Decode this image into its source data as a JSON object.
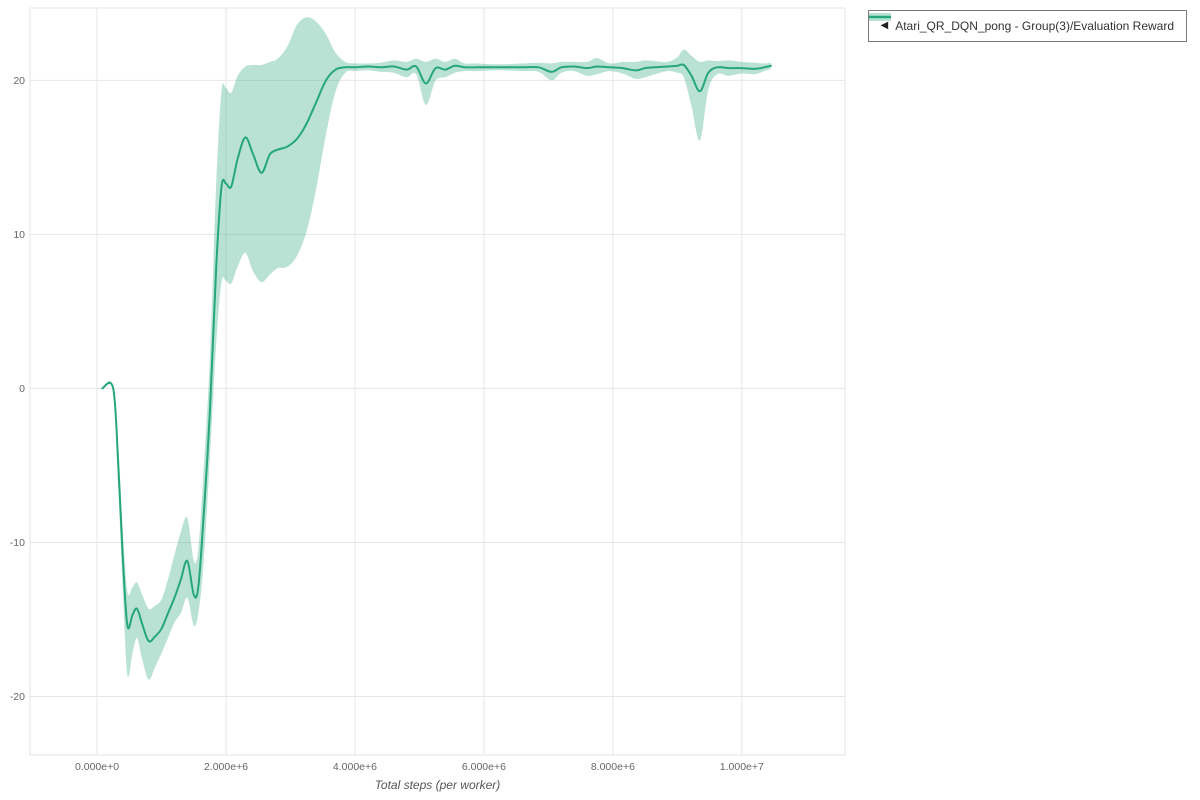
{
  "legend": {
    "toggle_icon": "◀",
    "label": "Atari_QR_DQN_pong - Group(3)/Evaluation Reward"
  },
  "chart_data": {
    "type": "line",
    "title": "",
    "xlabel": "Total steps (per worker)",
    "ylabel": "",
    "grid": true,
    "legend_position": "top-right-outside",
    "xlim": [
      -1040000,
      11600000
    ],
    "ylim": [
      -23.8,
      24.7
    ],
    "xticks": [
      {
        "value": 0,
        "label": "0.000e+0"
      },
      {
        "value": 2000000,
        "label": "2.000e+6"
      },
      {
        "value": 4000000,
        "label": "4.000e+6"
      },
      {
        "value": 6000000,
        "label": "6.000e+6"
      },
      {
        "value": 8000000,
        "label": "8.000e+6"
      },
      {
        "value": 10000000,
        "label": "1.000e+7"
      }
    ],
    "yticks": [
      {
        "value": -20,
        "label": "-20"
      },
      {
        "value": -10,
        "label": "-10"
      },
      {
        "value": 0,
        "label": "0"
      },
      {
        "value": 10,
        "label": "10"
      },
      {
        "value": 20,
        "label": "20"
      }
    ],
    "colors": {
      "line": "#26a67d",
      "band": "#26a67d",
      "band_opacity": 0.32,
      "grid": "#e6e6e6",
      "tick_text": "#666666",
      "axis_title_text": "#555555"
    },
    "series": [
      {
        "name": "Atari_QR_DQN_pong - Group(3)/Evaluation Reward",
        "points_format": [
          "x_steps",
          "mean",
          "lower",
          "upper"
        ],
        "points": [
          [
            80000,
            0,
            0,
            0
          ],
          [
            250000,
            0,
            0,
            0
          ],
          [
            330000,
            -5,
            -6.5,
            -3.8
          ],
          [
            400000,
            -11,
            -13.2,
            -9.2
          ],
          [
            470000,
            -15.4,
            -18.6,
            -13.2
          ],
          [
            550000,
            -14.7,
            -17.2,
            -12.9
          ],
          [
            620000,
            -14.3,
            -16.2,
            -12.6
          ],
          [
            700000,
            -15.3,
            -17.6,
            -13.4
          ],
          [
            800000,
            -16.4,
            -18.9,
            -14.3
          ],
          [
            900000,
            -16.1,
            -18.1,
            -14.1
          ],
          [
            1000000,
            -15.6,
            -17.2,
            -13.7
          ],
          [
            1100000,
            -14.6,
            -16.2,
            -12.4
          ],
          [
            1200000,
            -13.6,
            -15.2,
            -10.8
          ],
          [
            1300000,
            -12.4,
            -14.6,
            -9.3
          ],
          [
            1400000,
            -11.2,
            -13.6,
            -8.4
          ],
          [
            1500000,
            -13.4,
            -15.4,
            -11.2
          ],
          [
            1570000,
            -12.9,
            -14.6,
            -10.4
          ],
          [
            1650000,
            -8.5,
            -11.5,
            -5.5
          ],
          [
            1750000,
            -1.5,
            -4.5,
            2.0
          ],
          [
            1850000,
            8.0,
            3.0,
            13.5
          ],
          [
            1930000,
            13.1,
            6.9,
            19.3
          ],
          [
            2000000,
            13.3,
            7.0,
            19.5
          ],
          [
            2080000,
            13.1,
            6.8,
            19.2
          ],
          [
            2180000,
            14.9,
            7.9,
            20.3
          ],
          [
            2300000,
            16.3,
            8.8,
            20.9
          ],
          [
            2420000,
            15.2,
            7.6,
            21.0
          ],
          [
            2550000,
            14.0,
            6.9,
            21.0
          ],
          [
            2680000,
            15.2,
            7.4,
            21.2
          ],
          [
            2800000,
            15.5,
            7.8,
            21.4
          ],
          [
            2950000,
            15.7,
            7.9,
            22.2
          ],
          [
            3100000,
            16.2,
            8.6,
            23.6
          ],
          [
            3250000,
            17.2,
            10.2,
            24.1
          ],
          [
            3400000,
            18.6,
            13.0,
            23.8
          ],
          [
            3550000,
            20.0,
            16.5,
            23.0
          ],
          [
            3700000,
            20.7,
            19.3,
            21.8
          ],
          [
            3850000,
            20.85,
            20.5,
            21.2
          ],
          [
            4000000,
            20.85,
            20.6,
            21.1
          ],
          [
            4200000,
            20.9,
            20.65,
            21.1
          ],
          [
            4400000,
            20.85,
            20.55,
            21.15
          ],
          [
            4600000,
            20.9,
            20.5,
            21.3
          ],
          [
            4800000,
            20.7,
            20.2,
            21.2
          ],
          [
            4950000,
            20.9,
            20.4,
            21.4
          ],
          [
            5100000,
            19.8,
            18.4,
            21.2
          ],
          [
            5250000,
            20.8,
            20.0,
            21.4
          ],
          [
            5400000,
            20.7,
            20.2,
            21.2
          ],
          [
            5550000,
            20.95,
            20.5,
            21.4
          ],
          [
            5700000,
            20.85,
            20.6,
            21.1
          ],
          [
            5900000,
            20.85,
            20.6,
            21.1
          ],
          [
            6100000,
            20.85,
            20.65,
            21.05
          ],
          [
            6350000,
            20.85,
            20.65,
            21.05
          ],
          [
            6600000,
            20.85,
            20.6,
            21.1
          ],
          [
            6850000,
            20.85,
            20.55,
            21.15
          ],
          [
            7050000,
            20.55,
            20.0,
            21.1
          ],
          [
            7200000,
            20.85,
            20.5,
            21.2
          ],
          [
            7400000,
            20.9,
            20.6,
            21.2
          ],
          [
            7600000,
            20.8,
            20.3,
            21.2
          ],
          [
            7750000,
            20.9,
            20.4,
            21.45
          ],
          [
            7950000,
            20.85,
            20.6,
            21.1
          ],
          [
            8150000,
            20.8,
            20.45,
            21.2
          ],
          [
            8350000,
            20.65,
            20.1,
            21.2
          ],
          [
            8500000,
            20.8,
            20.2,
            21.3
          ],
          [
            8650000,
            20.85,
            20.4,
            21.25
          ],
          [
            8850000,
            20.9,
            20.6,
            21.2
          ],
          [
            9000000,
            20.95,
            20.5,
            21.5
          ],
          [
            9100000,
            21.0,
            20.2,
            22.0
          ],
          [
            9220000,
            20.3,
            18.3,
            21.6
          ],
          [
            9350000,
            19.3,
            16.1,
            21.2
          ],
          [
            9480000,
            20.5,
            19.4,
            21.3
          ],
          [
            9620000,
            20.85,
            20.4,
            21.25
          ],
          [
            9800000,
            20.8,
            20.3,
            21.3
          ],
          [
            10000000,
            20.8,
            20.45,
            21.2
          ],
          [
            10200000,
            20.75,
            20.4,
            21.15
          ],
          [
            10350000,
            20.85,
            20.6,
            21.1
          ],
          [
            10450000,
            20.95,
            20.75,
            21.15
          ]
        ]
      }
    ]
  }
}
